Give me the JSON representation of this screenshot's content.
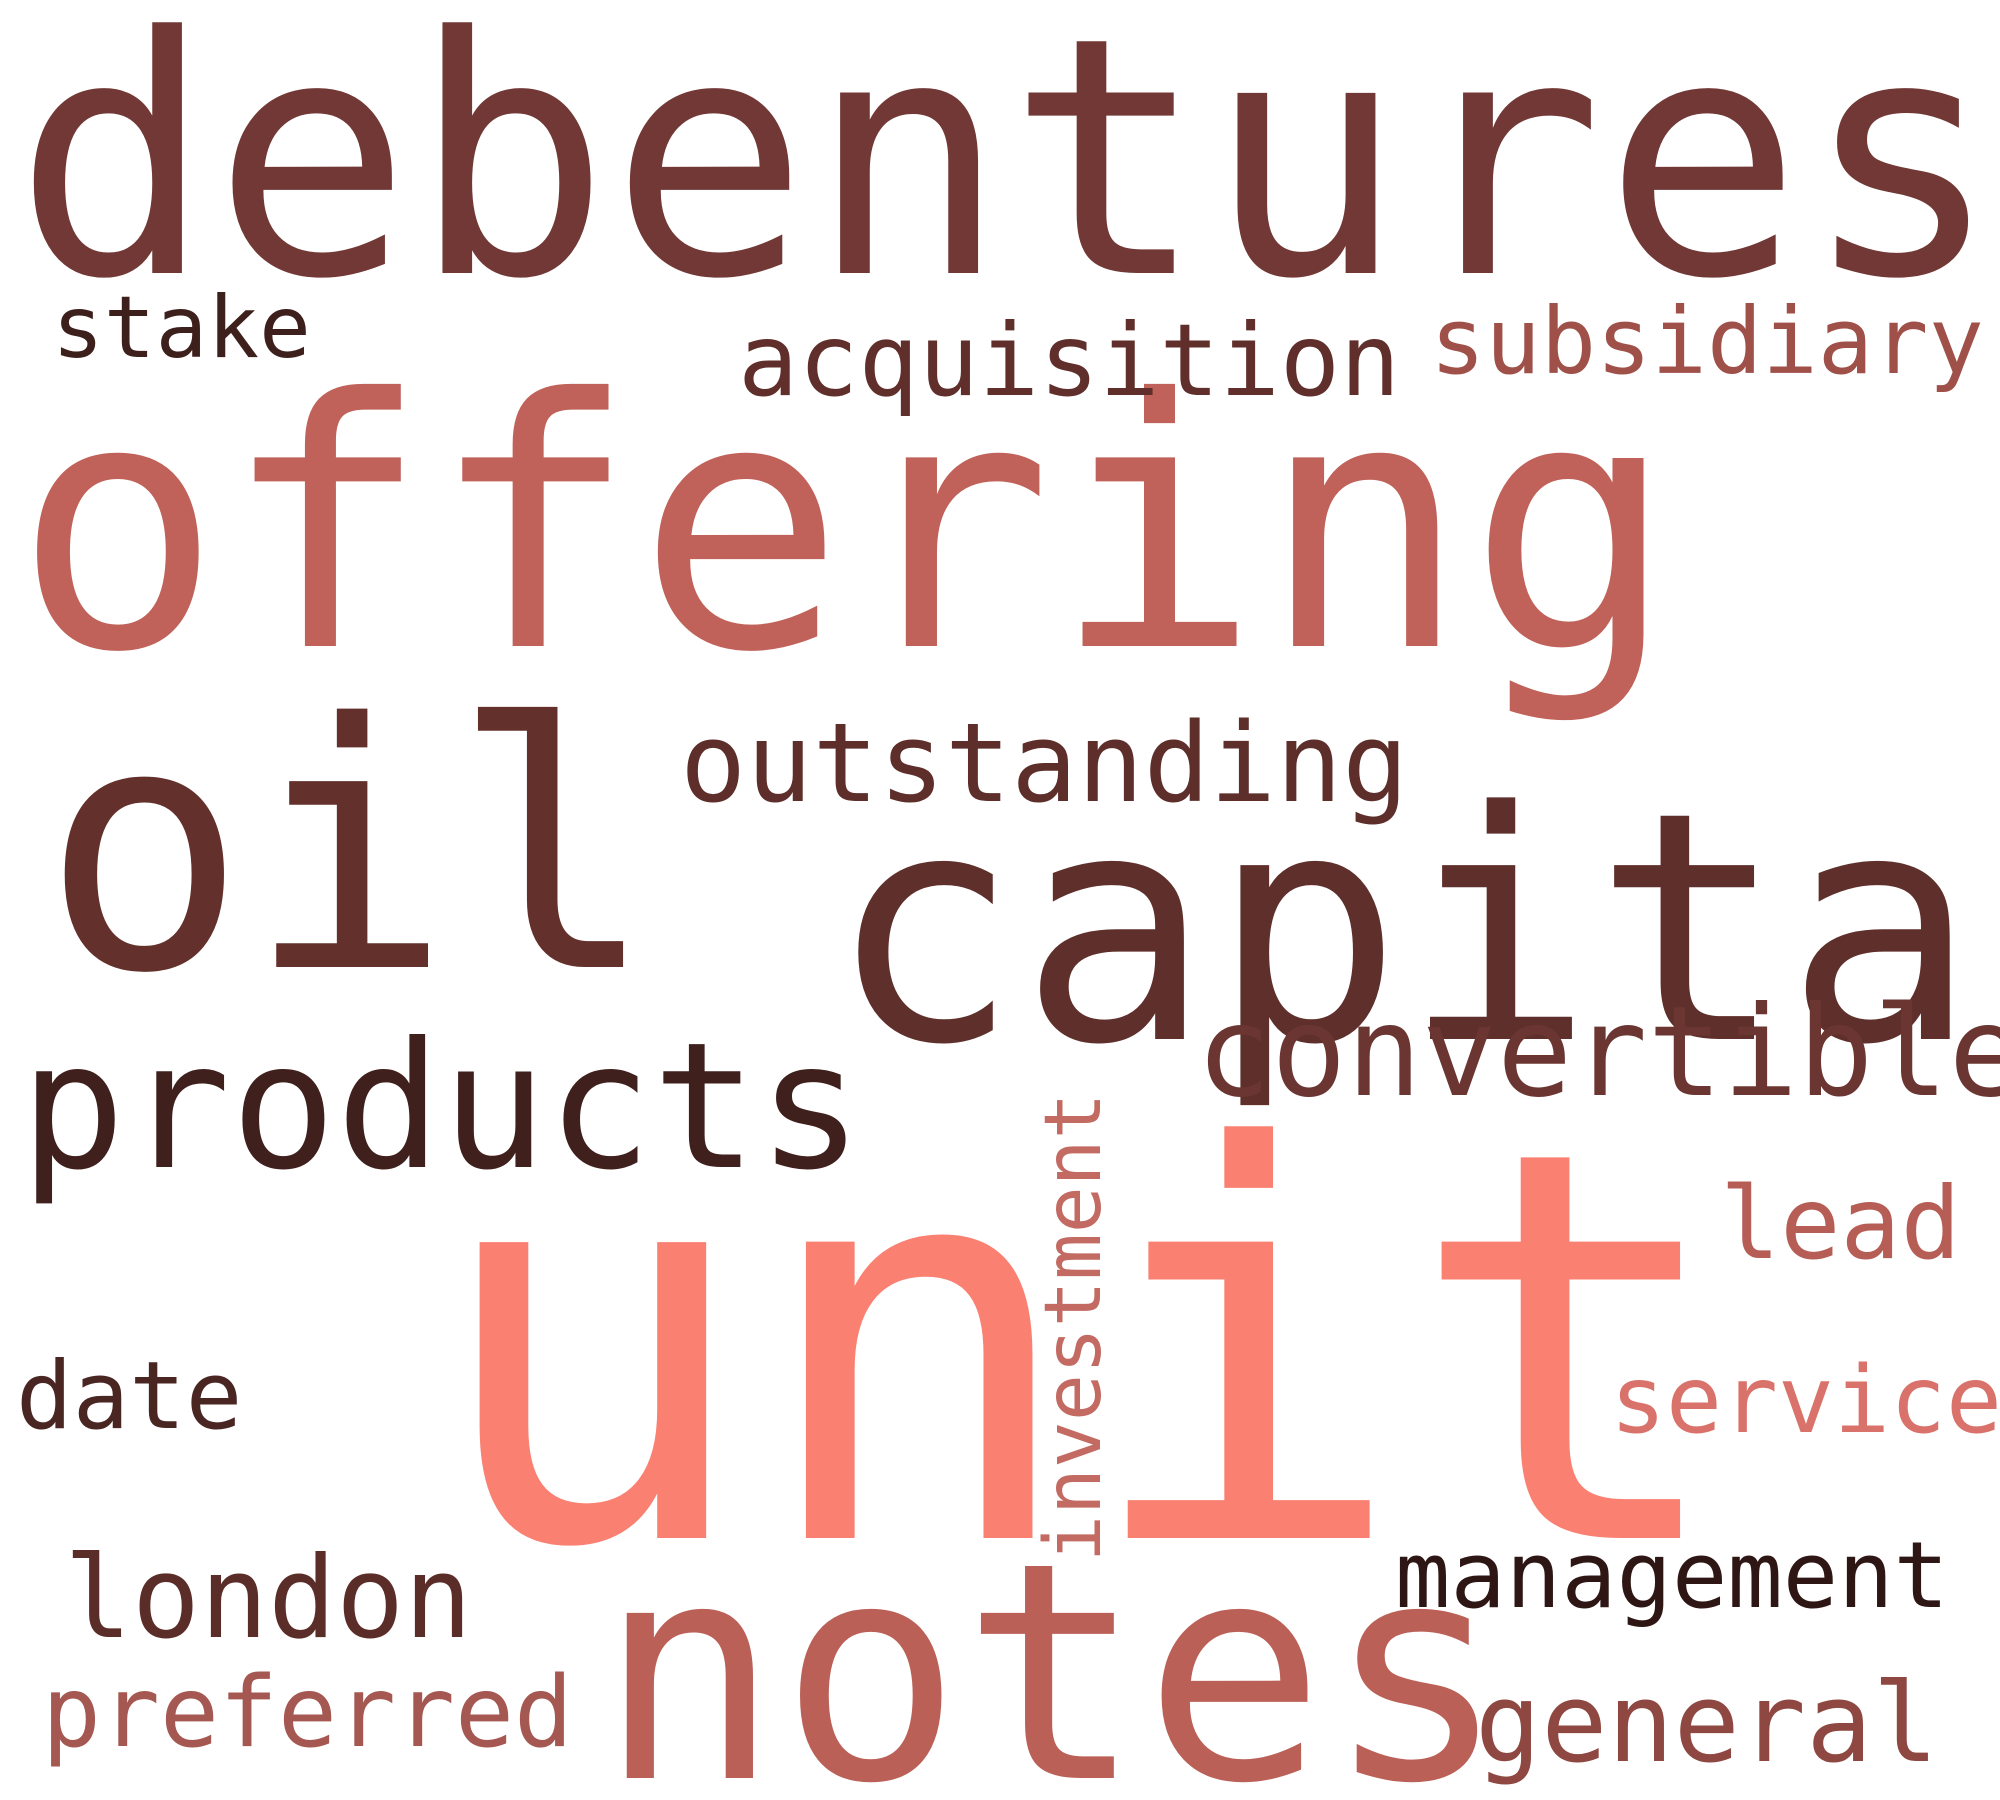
{
  "words": [
    {
      "text": "debentures",
      "color": "#713835"
    },
    {
      "text": "offering",
      "color": "#c06259"
    },
    {
      "text": "oil",
      "color": "#63302b"
    },
    {
      "text": "capital",
      "color": "#5e2f2b"
    },
    {
      "text": "unit",
      "color": "#fa8072"
    },
    {
      "text": "notes",
      "color": "#bb6057"
    },
    {
      "text": "products",
      "color": "#3f201d"
    },
    {
      "text": "convertible",
      "color": "#6b3632"
    },
    {
      "text": "outstanding",
      "color": "#5d2e2a"
    },
    {
      "text": "acquisition",
      "color": "#602f2b"
    },
    {
      "text": "subsidiary",
      "color": "#9f5048"
    },
    {
      "text": "stake",
      "color": "#3d1f1c"
    },
    {
      "text": "investment",
      "color": "#c36b62"
    },
    {
      "text": "lead",
      "color": "#b65d55"
    },
    {
      "text": "service",
      "color": "#d9726a"
    },
    {
      "text": "date",
      "color": "#4a2623"
    },
    {
      "text": "management",
      "color": "#2e1614"
    },
    {
      "text": "london",
      "color": "#5b2d29"
    },
    {
      "text": "preferred",
      "color": "#a55751"
    },
    {
      "text": "general",
      "color": "#8e4841"
    }
  ]
}
